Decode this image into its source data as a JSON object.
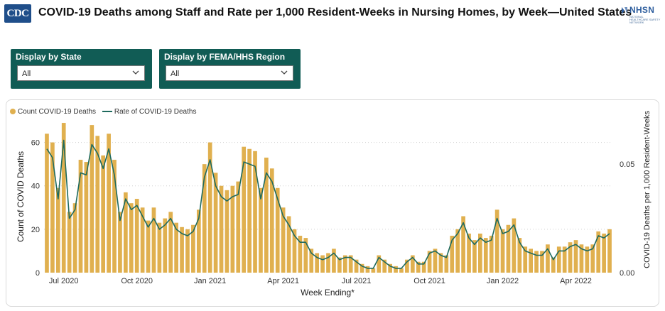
{
  "header": {
    "logo_text": "CDC",
    "title": "COVID-19 Deaths among Staff and Rate per 1,000 Resident-Weeks in Nursing Homes, by Week—United States",
    "nhsn_logo_text": "NHSN",
    "nhsn_logo_subtext": "NATIONAL HEALTHCARE SAFETY NETWORK"
  },
  "filters": [
    {
      "label": "Display by State",
      "value": "All"
    },
    {
      "label": "Display by FEMA/HHS Region",
      "value": "All"
    }
  ],
  "colors": {
    "bar": "#e0b04f",
    "line": "#1e6a5e",
    "filter_bg": "#115c55",
    "grid": "#d0d0d0"
  },
  "icons": [
    "cdc-logo",
    "nhsn-logo",
    "chevron-down-icon"
  ],
  "chart_data": {
    "type": "bar",
    "legend": [
      {
        "name": "Count COVID-19 Deaths",
        "kind": "bar"
      },
      {
        "name": "Rate of COVID-19 Deaths",
        "kind": "line"
      }
    ],
    "legend_position": "top-left",
    "xlabel": "Week Ending*",
    "ylabel_left": "Count of COVID Deaths",
    "ylabel_right": "COVID-19 Deaths per 1,000 Resident-Weeks",
    "ylim_left": [
      0,
      70
    ],
    "ylim_right": [
      0,
      0.07
    ],
    "yticks_left": [
      "0",
      "20",
      "40",
      "60"
    ],
    "yticks_right": [
      "0.00",
      "0.05"
    ],
    "x_tick_labels": [
      "Jul 2020",
      "Oct 2020",
      "Jan 2021",
      "Apr 2021",
      "Jul 2021",
      "Oct 2021",
      "Jan 2022",
      "Apr 2022"
    ],
    "x_tick_week_index": [
      3,
      16,
      29,
      42,
      55,
      68,
      81,
      94
    ],
    "grid": true,
    "weeks": 101,
    "series": [
      {
        "name": "Count COVID-19 Deaths",
        "axis": "left",
        "values": [
          64,
          60,
          39,
          69,
          28,
          32,
          52,
          51,
          68,
          63,
          54,
          64,
          52,
          28,
          37,
          32,
          34,
          30,
          24,
          30,
          23,
          25,
          28,
          23,
          21,
          20,
          22,
          29,
          50,
          60,
          46,
          40,
          38,
          40,
          42,
          58,
          57,
          56,
          39,
          53,
          48,
          39,
          30,
          26,
          20,
          17,
          16,
          11,
          9,
          8,
          9,
          11,
          7,
          8,
          8,
          6,
          4,
          3,
          2,
          8,
          6,
          4,
          3,
          2,
          6,
          8,
          5,
          5,
          10,
          11,
          9,
          8,
          17,
          20,
          26,
          18,
          15,
          18,
          16,
          17,
          29,
          20,
          22,
          25,
          16,
          12,
          11,
          10,
          10,
          13,
          7,
          12,
          12,
          14,
          15,
          13,
          12,
          13,
          19,
          18,
          20
        ]
      },
      {
        "name": "Rate of COVID-19 Deaths",
        "axis": "right",
        "values": [
          0.057,
          0.053,
          0.034,
          0.061,
          0.025,
          0.029,
          0.046,
          0.045,
          0.059,
          0.055,
          0.048,
          0.057,
          0.045,
          0.024,
          0.034,
          0.029,
          0.031,
          0.026,
          0.021,
          0.025,
          0.02,
          0.022,
          0.025,
          0.02,
          0.018,
          0.017,
          0.019,
          0.025,
          0.044,
          0.052,
          0.04,
          0.035,
          0.033,
          0.035,
          0.036,
          0.051,
          0.05,
          0.049,
          0.034,
          0.046,
          0.042,
          0.034,
          0.026,
          0.022,
          0.017,
          0.014,
          0.014,
          0.009,
          0.007,
          0.006,
          0.007,
          0.009,
          0.006,
          0.007,
          0.007,
          0.005,
          0.003,
          0.002,
          0.002,
          0.007,
          0.005,
          0.003,
          0.002,
          0.002,
          0.005,
          0.007,
          0.004,
          0.004,
          0.009,
          0.01,
          0.008,
          0.007,
          0.015,
          0.018,
          0.023,
          0.016,
          0.013,
          0.016,
          0.014,
          0.015,
          0.025,
          0.018,
          0.019,
          0.022,
          0.014,
          0.01,
          0.009,
          0.008,
          0.008,
          0.011,
          0.006,
          0.01,
          0.01,
          0.012,
          0.013,
          0.011,
          0.01,
          0.011,
          0.017,
          0.016,
          0.018
        ]
      }
    ]
  }
}
